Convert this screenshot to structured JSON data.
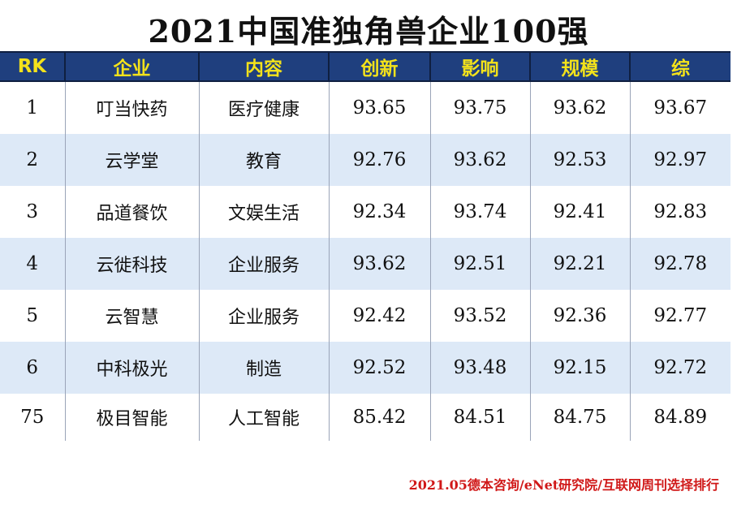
{
  "title": "2021中国准独角兽企业100强",
  "table": {
    "headers": [
      "RK",
      "企业",
      "内容",
      "创新",
      "影响",
      "规模",
      "综"
    ],
    "rows": [
      {
        "rk": "1",
        "company": "叮当快药",
        "content": "医疗健康",
        "innovation": "93.65",
        "influence": "93.75",
        "scale": "93.62",
        "overall": "93.67"
      },
      {
        "rk": "2",
        "company": "云学堂",
        "content": "教育",
        "innovation": "92.76",
        "influence": "93.62",
        "scale": "92.53",
        "overall": "92.97"
      },
      {
        "rk": "3",
        "company": "品道餐饮",
        "content": "文娱生活",
        "innovation": "92.34",
        "influence": "93.74",
        "scale": "92.41",
        "overall": "92.83"
      },
      {
        "rk": "4",
        "company": "云徙科技",
        "content": "企业服务",
        "innovation": "93.62",
        "influence": "92.51",
        "scale": "92.21",
        "overall": "92.78"
      },
      {
        "rk": "5",
        "company": "云智慧",
        "content": "企业服务",
        "innovation": "92.42",
        "influence": "93.52",
        "scale": "92.36",
        "overall": "92.77"
      },
      {
        "rk": "6",
        "company": "中科极光",
        "content": "制造",
        "innovation": "92.52",
        "influence": "93.48",
        "scale": "92.15",
        "overall": "92.72"
      },
      {
        "rk": "75",
        "company": "极目智能",
        "content": "人工智能",
        "innovation": "85.42",
        "influence": "84.51",
        "scale": "84.75",
        "overall": "84.89"
      }
    ]
  },
  "source": "2021.05德本咨询/eNet研究院/互联网周刊选择排行",
  "colors": {
    "header_bg": "#1f3f7e",
    "header_text": "#f3e21b",
    "stripe": "#dde9f7",
    "source_text": "#d01818"
  }
}
